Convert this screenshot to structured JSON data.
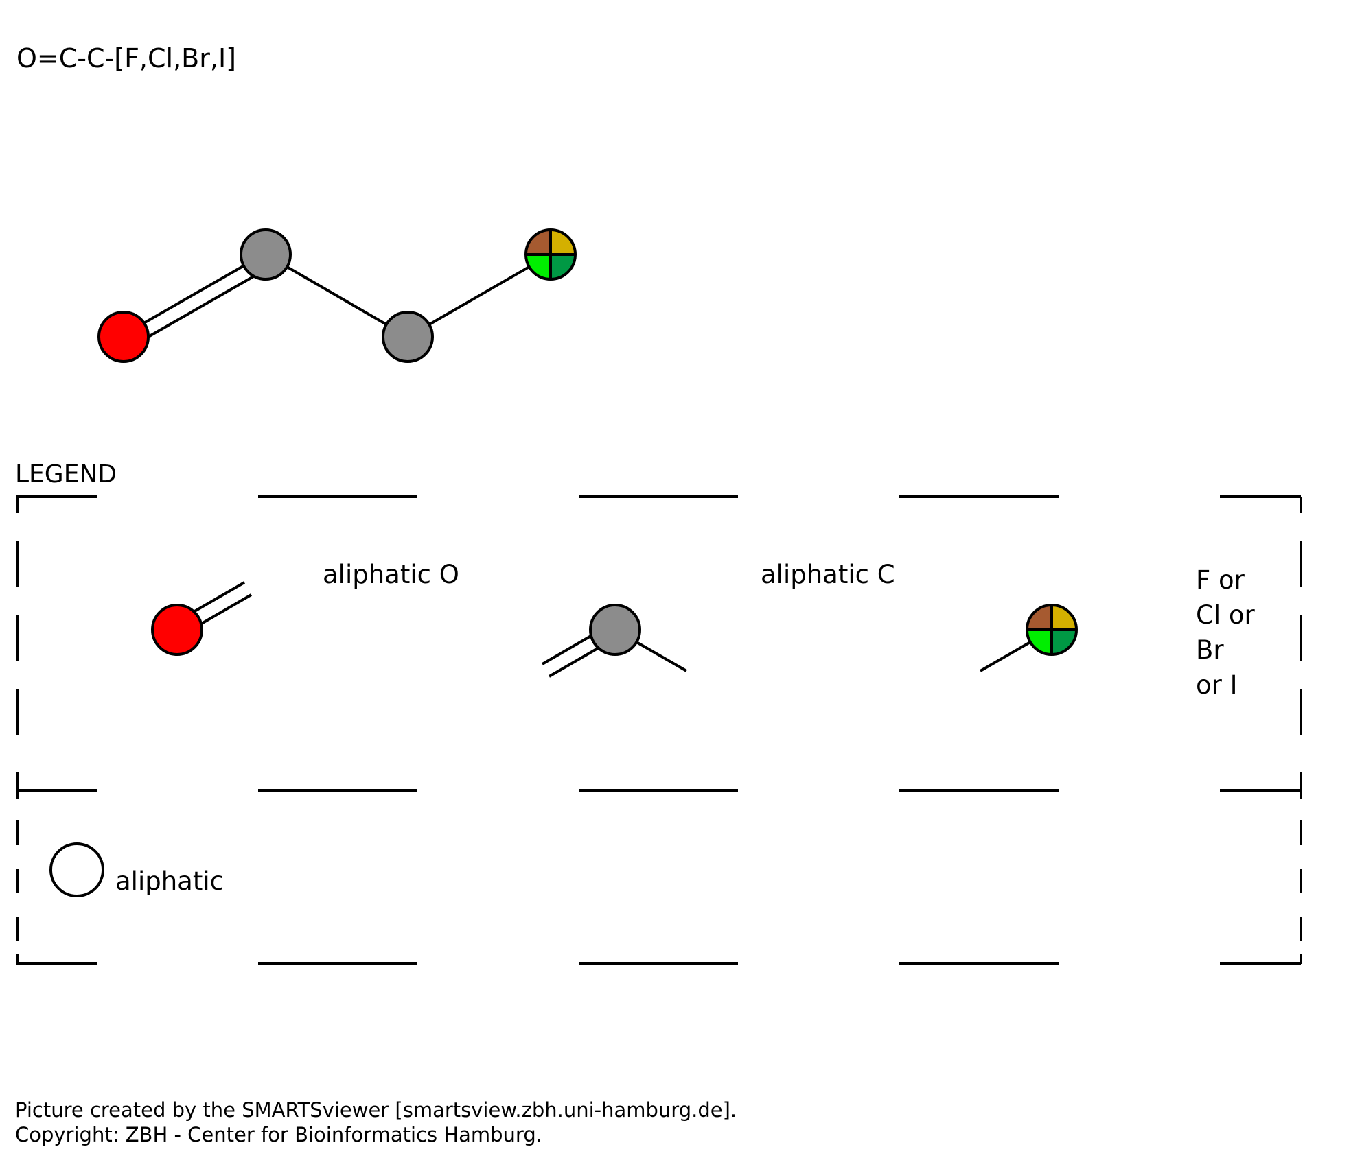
{
  "smarts": "O=C-C-[F,Cl,Br,I]",
  "legend": {
    "title": "LEGEND",
    "label_o": "aliphatic O",
    "label_c": "aliphatic C",
    "label_halogen": [
      "F or",
      "Cl or",
      "Br",
      "or I"
    ],
    "label_aliphatic": "aliphatic"
  },
  "colors": {
    "oxygen": "#ff0000",
    "carbon": "#8c8c8c",
    "fluorine": "#00ee00",
    "chlorine": "#009944",
    "bromine": "#a65a30",
    "iodine": "#d4b000"
  },
  "footer": {
    "line1": "Picture created by the SMARTSviewer [smartsview.zbh.uni-hamburg.de].",
    "line2": "Copyright: ZBH - Center for Bioinformatics Hamburg."
  }
}
